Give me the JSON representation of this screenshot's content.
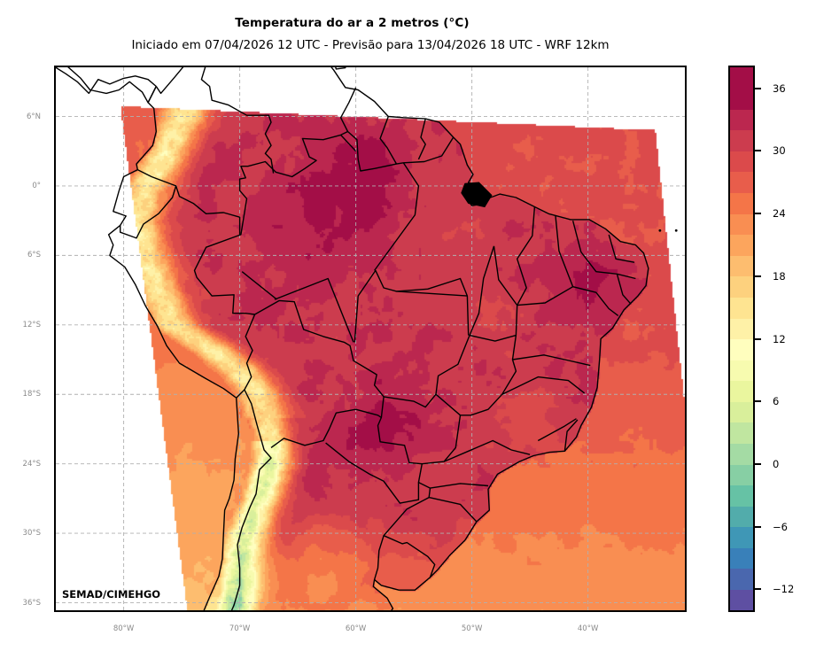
{
  "header": {
    "title": "Temperatura do ar a 2 metros (°C)",
    "subtitle": "Iniciado em 07/04/2026 12 UTC - Previsão para 13/04/2026 18 UTC - WRF 12km"
  },
  "watermark": "SEMAD/CIMEHGO",
  "map": {
    "variable": "2 m air temperature",
    "units": "°C",
    "model": "WRF 12km",
    "extent": {
      "lon_min": -86,
      "lon_max": -31.5,
      "lat_min": -36.8,
      "lat_max": 10.4
    },
    "lat_ticks": [
      {
        "value": 6,
        "label": "6°N"
      },
      {
        "value": 0,
        "label": "0°"
      },
      {
        "value": -6,
        "label": "6°S"
      },
      {
        "value": -12,
        "label": "12°S"
      },
      {
        "value": -18,
        "label": "18°S"
      },
      {
        "value": -24,
        "label": "24°S"
      },
      {
        "value": -30,
        "label": "30°S"
      },
      {
        "value": -36,
        "label": "36°S"
      }
    ],
    "lon_ticks": [
      {
        "value": -80,
        "label": "80°W"
      },
      {
        "value": -70,
        "label": "70°W"
      },
      {
        "value": -60,
        "label": "60°W"
      },
      {
        "value": -50,
        "label": "50°W"
      },
      {
        "value": -40,
        "label": "40°W"
      }
    ],
    "gridlines": true,
    "colors": {
      "ocean_none": "#ffffff",
      "border": "#000000",
      "grid": "#b0b0b0"
    }
  },
  "colorbar": {
    "min": -14,
    "max": 38,
    "step": 2,
    "tick_labels": [
      {
        "value": 36,
        "label": "36"
      },
      {
        "value": 30,
        "label": "30"
      },
      {
        "value": 24,
        "label": "24"
      },
      {
        "value": 18,
        "label": "18"
      },
      {
        "value": 12,
        "label": "12"
      },
      {
        "value": 6,
        "label": "6"
      },
      {
        "value": 0,
        "label": "0"
      },
      {
        "value": -6,
        "label": "−6"
      },
      {
        "value": -12,
        "label": "−12"
      }
    ],
    "colors": [
      "#5e4fa2",
      "#4a67ae",
      "#3980b9",
      "#3f97b6",
      "#52acab",
      "#66c2a5",
      "#87cfa4",
      "#a4dba4",
      "#c0e6a0",
      "#d9ef9b",
      "#eaf69e",
      "#f7fbaf",
      "#fffebe",
      "#fef1a7",
      "#fee491",
      "#fdd17e",
      "#fdbd6f",
      "#fca55d",
      "#f98e52",
      "#f47548",
      "#e85d4b",
      "#db4a4b",
      "#cc3c4e",
      "#bb274f",
      "#a30e47",
      "#a30e47"
    ]
  }
}
